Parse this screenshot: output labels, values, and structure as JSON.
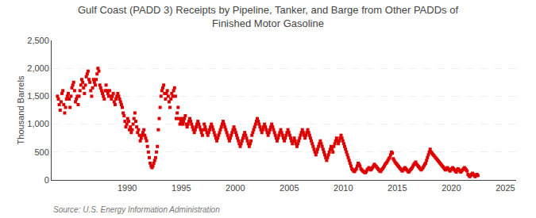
{
  "chart_data": {
    "type": "scatter",
    "title": "Gulf Coast (PADD 3) Receipts by Pipeline, Tanker, and Barge from Other PADDs of\nFinished Motor Gasoline",
    "y_label": "Thousand Barrels",
    "annotations": [
      "Source: U.S. Energy Information Administration"
    ],
    "color": "#dd0000",
    "marker": "square",
    "grid": true,
    "xlim": [
      1983,
      2026
    ],
    "xticks": [
      1990,
      1995,
      2000,
      2005,
      2010,
      2015,
      2020,
      2025
    ],
    "ylim": [
      0,
      2500
    ],
    "yticks": [
      0,
      500,
      {
        "value": 1000,
        "label": "1,000"
      },
      {
        "value": 1500,
        "label": "1,500"
      },
      {
        "value": 2000,
        "label": "2,000"
      },
      {
        "value": 2500,
        "label": "2,500"
      }
    ],
    "x": [
      1983.5416666666667,
      1983.625,
      1983.7083333333333,
      1983.7916666666667,
      1983.875,
      1983.9583333333333,
      1984.0416666666667,
      1984.125,
      1984.2083333333333,
      1984.2916666666667,
      1984.375,
      1984.4583333333333,
      1984.5416666666667,
      1984.625,
      1984.7083333333333,
      1984.7916666666667,
      1984.875,
      1984.9583333333333,
      1985.0416666666667,
      1985.125,
      1985.2083333333333,
      1985.2916666666667,
      1985.375,
      1985.4583333333333,
      1985.5416666666667,
      1985.625,
      1985.7083333333333,
      1985.7916666666667,
      1985.875,
      1985.9583333333333,
      1986.0416666666667,
      1986.125,
      1986.2083333333333,
      1986.2916666666667,
      1986.375,
      1986.4583333333333,
      1986.5416666666667,
      1986.625,
      1986.7083333333333,
      1986.7916666666667,
      1986.875,
      1986.9583333333333,
      1987.0416666666667,
      1987.125,
      1987.2083333333333,
      1987.2916666666667,
      1987.375,
      1987.4583333333333,
      1987.5416666666667,
      1987.625,
      1987.7083333333333,
      1987.7916666666667,
      1987.875,
      1987.9583333333333,
      1988.0416666666667,
      1988.125,
      1988.2083333333333,
      1988.2916666666667,
      1988.375,
      1988.4583333333333,
      1988.5416666666667,
      1988.625,
      1988.7083333333333,
      1988.7916666666667,
      1988.875,
      1988.9583333333333,
      1989.0416666666667,
      1989.125,
      1989.2083333333333,
      1989.2916666666667,
      1989.375,
      1989.4583333333333,
      1989.5416666666667,
      1989.625,
      1989.7083333333333,
      1989.7916666666667,
      1989.875,
      1989.9583333333333,
      1990.0416666666667,
      1990.125,
      1990.2083333333333,
      1990.2916666666667,
      1990.375,
      1990.4583333333333,
      1990.5416666666667,
      1990.625,
      1990.7083333333333,
      1990.7916666666667,
      1990.875,
      1990.9583333333333,
      1991.0416666666667,
      1991.125,
      1991.2083333333333,
      1991.2916666666667,
      1991.375,
      1991.4583333333333,
      1991.5416666666667,
      1991.625,
      1991.7083333333333,
      1991.7916666666667,
      1991.875,
      1991.9583333333333,
      1992.0416666666667,
      1992.125,
      1992.2083333333333,
      1992.2916666666667,
      1992.375,
      1992.4583333333333,
      1992.5416666666667,
      1992.625,
      1992.7083333333333,
      1992.7916666666667,
      1992.875,
      1992.9583333333333,
      1993.0416666666667,
      1993.125,
      1993.2083333333333,
      1993.2916666666667,
      1993.375,
      1993.4583333333333,
      1993.5416666666667,
      1993.625,
      1993.7083333333333,
      1993.7916666666667,
      1993.875,
      1993.9583333333333,
      1994.0416666666667,
      1994.125,
      1994.2083333333333,
      1994.2916666666667,
      1994.375,
      1994.4583333333333,
      1994.5416666666667,
      1994.625,
      1994.7083333333333,
      1994.7916666666667,
      1994.875,
      1994.9583333333333,
      1995.0416666666667,
      1995.125,
      1995.2083333333333,
      1995.2916666666667,
      1995.375,
      1995.4583333333333,
      1995.5416666666667,
      1995.625,
      1995.7083333333333,
      1995.7916666666667,
      1995.875,
      1995.9583333333333,
      1996.0416666666667,
      1996.125,
      1996.2083333333333,
      1996.2916666666667,
      1996.375,
      1996.4583333333333,
      1996.5416666666667,
      1996.625,
      1996.7083333333333,
      1996.7916666666667,
      1996.875,
      1996.9583333333333,
      1997.0416666666667,
      1997.125,
      1997.2083333333333,
      1997.2916666666667,
      1997.375,
      1997.4583333333333,
      1997.5416666666667,
      1997.625,
      1997.7083333333333,
      1997.7916666666667,
      1997.875,
      1997.9583333333333,
      1998.0416666666667,
      1998.125,
      1998.2083333333333,
      1998.2916666666667,
      1998.375,
      1998.4583333333333,
      1998.5416666666667,
      1998.625,
      1998.7083333333333,
      1998.7916666666667,
      1998.875,
      1998.9583333333333,
      1999.0416666666667,
      1999.125,
      1999.2083333333333,
      1999.2916666666667,
      1999.375,
      1999.4583333333333,
      1999.5416666666667,
      1999.625,
      1999.7083333333333,
      1999.7916666666667,
      1999.875,
      1999.9583333333333,
      2000.0416666666667,
      2000.125,
      2000.2083333333333,
      2000.2916666666667,
      2000.375,
      2000.4583333333333,
      2000.5416666666667,
      2000.625,
      2000.7083333333333,
      2000.7916666666667,
      2000.875,
      2000.9583333333333,
      2001.0416666666667,
      2001.125,
      2001.2083333333333,
      2001.2916666666667,
      2001.375,
      2001.4583333333333,
      2001.5416666666667,
      2001.625,
      2001.7083333333333,
      2001.7916666666667,
      2001.875,
      2001.9583333333333,
      2002.0416666666667,
      2002.125,
      2002.2083333333333,
      2002.2916666666667,
      2002.375,
      2002.4583333333333,
      2002.5416666666667,
      2002.625,
      2002.7083333333333,
      2002.7916666666667,
      2002.875,
      2002.9583333333333,
      2003.0416666666667,
      2003.125,
      2003.2083333333333,
      2003.2916666666667,
      2003.375,
      2003.4583333333333,
      2003.5416666666667,
      2003.625,
      2003.7083333333333,
      2003.7916666666667,
      2003.875,
      2003.9583333333333,
      2004.0416666666667,
      2004.125,
      2004.2083333333333,
      2004.2916666666667,
      2004.375,
      2004.4583333333333,
      2004.5416666666667,
      2004.625,
      2004.7083333333333,
      2004.7916666666667,
      2004.875,
      2004.9583333333333,
      2005.0416666666667,
      2005.125,
      2005.2083333333333,
      2005.2916666666667,
      2005.375,
      2005.4583333333333,
      2005.5416666666667,
      2005.625,
      2005.7083333333333,
      2005.7916666666667,
      2005.875,
      2005.9583333333333,
      2006.0416666666667,
      2006.125,
      2006.2083333333333,
      2006.2916666666667,
      2006.375,
      2006.4583333333333,
      2006.5416666666667,
      2006.625,
      2006.7083333333333,
      2006.7916666666667,
      2006.875,
      2006.9583333333333,
      2007.0416666666667,
      2007.125,
      2007.2083333333333,
      2007.2916666666667,
      2007.375,
      2007.4583333333333,
      2007.5416666666667,
      2007.625,
      2007.7083333333333,
      2007.7916666666667,
      2007.875,
      2007.9583333333333,
      2008.0416666666667,
      2008.125,
      2008.2083333333333,
      2008.2916666666667,
      2008.375,
      2008.4583333333333,
      2008.5416666666667,
      2008.625,
      2008.7083333333333,
      2008.7916666666667,
      2008.875,
      2008.9583333333333,
      2009.0416666666667,
      2009.125,
      2009.2083333333333,
      2009.2916666666667,
      2009.375,
      2009.4583333333333,
      2009.5416666666667,
      2009.625,
      2009.7083333333333,
      2009.7916666666667,
      2009.875,
      2009.9583333333333,
      2010.0416666666667,
      2010.125,
      2010.2083333333333,
      2010.2916666666667,
      2010.375,
      2010.4583333333333,
      2010.5416666666667,
      2010.625,
      2010.7083333333333,
      2010.7916666666667,
      2010.875,
      2010.9583333333333,
      2011.0416666666667,
      2011.125,
      2011.2083333333333,
      2011.2916666666667,
      2011.375,
      2011.4583333333333,
      2011.5416666666667,
      2011.625,
      2011.7083333333333,
      2011.7916666666667,
      2011.875,
      2011.9583333333333,
      2012.0416666666667,
      2012.125,
      2012.2083333333333,
      2012.2916666666667,
      2012.375,
      2012.4583333333333,
      2012.5416666666667,
      2012.625,
      2012.7083333333333,
      2012.7916666666667,
      2012.875,
      2012.9583333333333,
      2013.0416666666667,
      2013.125,
      2013.2083333333333,
      2013.2916666666667,
      2013.375,
      2013.4583333333333,
      2013.5416666666667,
      2013.625,
      2013.7083333333333,
      2013.7916666666667,
      2013.875,
      2013.9583333333333,
      2014.0416666666667,
      2014.125,
      2014.2083333333333,
      2014.2916666666667,
      2014.375,
      2014.4583333333333,
      2014.5416666666667,
      2014.625,
      2014.7083333333333,
      2014.7916666666667,
      2014.875,
      2014.9583333333333,
      2015.0416666666667,
      2015.125,
      2015.2083333333333,
      2015.2916666666667,
      2015.375,
      2015.4583333333333,
      2015.5416666666667,
      2015.625,
      2015.7083333333333,
      2015.7916666666667,
      2015.875,
      2015.9583333333333,
      2016.0416666666667,
      2016.125,
      2016.2083333333333,
      2016.2916666666667,
      2016.375,
      2016.4583333333333,
      2016.5416666666667,
      2016.625,
      2016.7083333333333,
      2016.7916666666667,
      2016.875,
      2016.9583333333333,
      2017.0416666666667,
      2017.125,
      2017.2083333333333,
      2017.2916666666667,
      2017.375,
      2017.4583333333333,
      2017.5416666666667,
      2017.625,
      2017.7083333333333,
      2017.7916666666667,
      2017.875,
      2017.9583333333333,
      2018.0416666666667,
      2018.125,
      2018.2083333333333,
      2018.2916666666667,
      2018.375,
      2018.4583333333333,
      2018.5416666666667,
      2018.625,
      2018.7083333333333,
      2018.7916666666667,
      2018.875,
      2018.9583333333333,
      2019.0416666666667,
      2019.125,
      2019.2083333333333,
      2019.2916666666667,
      2019.375,
      2019.4583333333333,
      2019.5416666666667,
      2019.625,
      2019.7083333333333,
      2019.7916666666667,
      2019.875,
      2019.9583333333333,
      2020.0416666666667,
      2020.125,
      2020.2083333333333,
      2020.2916666666667,
      2020.375,
      2020.4583333333333,
      2020.5416666666667,
      2020.625,
      2020.7083333333333,
      2020.7916666666667,
      2020.875,
      2020.9583333333333,
      2021.0416666666667,
      2021.125,
      2021.2083333333333,
      2021.2916666666667,
      2021.375,
      2021.4583333333333,
      2021.5416666666667,
      2021.625,
      2021.7083333333333,
      2021.7916666666667,
      2021.875,
      2021.9583333333333,
      2022.0416666666667,
      2022.125,
      2022.2083333333333,
      2022.2916666666667,
      2022.375,
      2022.4583333333333
    ],
    "values": [
      1500,
      1450,
      1350,
      1250,
      1400,
      1550,
      1600,
      1350,
      1200,
      1300,
      1450,
      1500,
      1550,
      1450,
      1300,
      1500,
      1650,
      1700,
      1750,
      1600,
      1400,
      1450,
      1500,
      1350,
      1500,
      1600,
      1700,
      1800,
      1750,
      1650,
      1550,
      1700,
      1850,
      1900,
      1950,
      1800,
      1750,
      1600,
      1500,
      1650,
      1800,
      1750,
      1700,
      1800,
      1900,
      2000,
      1950,
      1700,
      1650,
      1600,
      1550,
      1500,
      1450,
      1600,
      1700,
      1600,
      1550,
      1500,
      1600,
      1500,
      1450,
      1500,
      1550,
      1400,
      1350,
      1450,
      1500,
      1550,
      1500,
      1450,
      1400,
      1350,
      1300,
      1200,
      1150,
      1050,
      950,
      1000,
      1100,
      1050,
      900,
      950,
      850,
      900,
      1000,
      1100,
      1200,
      1050,
      950,
      850,
      900,
      800,
      700,
      750,
      800,
      850,
      900,
      800,
      750,
      700,
      600,
      500,
      400,
      300,
      250,
      220,
      250,
      300,
      350,
      400,
      500,
      600,
      900,
      1100,
      1300,
      1500,
      1600,
      1650,
      1700,
      1550,
      1450,
      1550,
      1600,
      1500,
      1400,
      1300,
      1450,
      1550,
      1500,
      1600,
      1650,
      1500,
      1100,
      1200,
      1300,
      1100,
      1000,
      1050,
      1100,
      1000,
      1050,
      1100,
      1150,
      1000,
      950,
      1000,
      1050,
      1100,
      1050,
      1000,
      950,
      900,
      850,
      900,
      950,
      1000,
      1050,
      1000,
      950,
      900,
      850,
      800,
      900,
      1000,
      950,
      900,
      850,
      800,
      850,
      900,
      950,
      1000,
      950,
      900,
      850,
      800,
      750,
      700,
      750,
      800,
      850,
      900,
      950,
      1000,
      1050,
      1000,
      950,
      900,
      850,
      800,
      750,
      700,
      750,
      800,
      850,
      900,
      950,
      900,
      850,
      800,
      750,
      700,
      650,
      600,
      650,
      700,
      750,
      800,
      850,
      800,
      750,
      700,
      650,
      600,
      650,
      700,
      800,
      850,
      900,
      950,
      1000,
      1050,
      1100,
      1050,
      1000,
      950,
      900,
      850,
      900,
      950,
      1000,
      950,
      900,
      850,
      800,
      850,
      900,
      950,
      1000,
      950,
      900,
      850,
      800,
      750,
      700,
      750,
      800,
      850,
      900,
      850,
      800,
      750,
      700,
      750,
      800,
      850,
      900,
      850,
      800,
      750,
      700,
      650,
      700,
      750,
      700,
      650,
      600,
      650,
      700,
      750,
      800,
      850,
      900,
      850,
      800,
      750,
      800,
      850,
      900,
      850,
      800,
      750,
      700,
      650,
      600,
      550,
      500,
      450,
      500,
      550,
      600,
      650,
      700,
      650,
      600,
      550,
      500,
      450,
      400,
      350,
      400,
      450,
      500,
      550,
      600,
      550,
      500,
      600,
      650,
      700,
      750,
      700,
      650,
      700,
      750,
      800,
      750,
      700,
      650,
      600,
      550,
      500,
      450,
      400,
      350,
      300,
      250,
      200,
      180,
      160,
      150,
      180,
      200,
      250,
      300,
      280,
      250,
      200,
      180,
      160,
      150,
      140,
      130,
      150,
      180,
      200,
      220,
      200,
      180,
      200,
      220,
      250,
      280,
      260,
      240,
      220,
      200,
      180,
      160,
      150,
      180,
      200,
      220,
      250,
      280,
      300,
      320,
      350,
      380,
      400,
      450,
      500,
      480,
      380,
      350,
      320,
      300,
      280,
      260,
      240,
      220,
      200,
      180,
      160,
      180,
      200,
      220,
      200,
      180,
      160,
      140,
      160,
      180,
      200,
      220,
      250,
      280,
      300,
      320,
      280,
      260,
      240,
      220,
      200,
      180,
      200,
      220,
      250,
      280,
      300,
      350,
      400,
      450,
      500,
      550,
      500,
      480,
      460,
      440,
      420,
      400,
      380,
      360,
      340,
      320,
      300,
      280,
      260,
      240,
      220,
      200,
      180,
      200,
      220,
      200,
      180,
      160,
      180,
      200,
      220,
      200,
      180,
      160,
      140,
      180,
      200,
      180,
      160,
      140,
      160,
      180,
      200,
      220,
      200,
      180,
      160,
      100,
      80,
      60,
      80,
      100,
      120,
      100,
      80,
      60,
      80,
      100,
      80
    ]
  }
}
